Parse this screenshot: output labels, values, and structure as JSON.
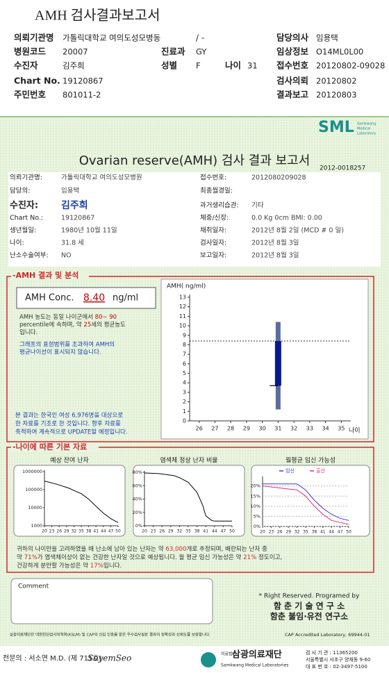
{
  "header": {
    "title": "AMH 검사결과보고서",
    "ward": "/ -",
    "fields": [
      {
        "label": "의뢰기관명",
        "value": "가톨릭대학교 여의도성모병동"
      },
      {
        "label": "담당의사",
        "value": "임용택"
      },
      {
        "label": "병원코드",
        "value": "20007"
      },
      {
        "label": "진료과",
        "value": "GY"
      },
      {
        "label": "임상정보",
        "value": "O14ML0L00"
      },
      {
        "label": "수진자",
        "value": "김주희"
      },
      {
        "label": "성별",
        "value": "F"
      },
      {
        "label": "나이",
        "value": "31"
      },
      {
        "label": "접수번호",
        "value": "20120802-09028"
      },
      {
        "label": "Chart No.",
        "value": "19120867"
      },
      {
        "label": "검사의뢰",
        "value": "20120802"
      },
      {
        "label": "주민번호",
        "value": "801011-2"
      },
      {
        "label": "결과보고",
        "value": "20120803"
      }
    ]
  },
  "report": {
    "logo": "SML",
    "logo_sub": [
      "Samkwang",
      "Medical",
      "Laboratory"
    ],
    "title": "Ovarian reserve(AMH) 검사 결과 보고서",
    "number": "2012-0018257",
    "patient": [
      {
        "label": "의뢰기관명:",
        "value": "가톨릭대학교 여의도성모병원"
      },
      {
        "label": "접수번호:",
        "value": "2012080209028"
      },
      {
        "label": "담당의:",
        "value": "임용택"
      },
      {
        "label": "최종월경일:"
      },
      {
        "label": "수진자:",
        "value": "김주희"
      },
      {
        "label": "과거생리습관:",
        "value": "기타"
      },
      {
        "label": "Chart No.:",
        "value": "19120867"
      },
      {
        "label": "체중/신장:",
        "value": "0.0 Kg      0cm     BMI:  0.00"
      },
      {
        "label": "생년월일:",
        "value": "1980년 10월 11일"
      },
      {
        "label": "채취일자:",
        "value": "2012년 8월 2일    (MCD #  0 일)"
      },
      {
        "label": "나이:",
        "value": "31.8 세"
      },
      {
        "label": "검사일자:",
        "value": "2012년 8월 3일"
      },
      {
        "label": "난소수술여부:",
        "value": "NO"
      },
      {
        "label": "보고일자:",
        "value": "2012년 8월 3일"
      }
    ]
  },
  "amh": {
    "section_title": "-AMH 결과 및 분석",
    "label": "AMH Conc.",
    "value": "8.40",
    "unit": "ng/ml",
    "analysis": [
      [
        "AMH 농도는 동일 나이군에서 ",
        "80~ 90"
      ],
      [
        "percentile에 속하며, 약 ",
        "25",
        "세의 평균농도"
      ],
      [
        "입니다."
      ]
    ],
    "graph_note": [
      "그래프의 표현범위를 초과하여 AMH의",
      "평균나이선이 표시되지 않습니다."
    ],
    "note": [
      "본 결과는 한국인 여성 6,976명을 대상으로",
      "한 자료를 기초로 한 것입니다. 향후 자료를",
      "축적하여 계속적으로 UPDATE할 예정입니다."
    ],
    "chart": {
      "type": "box",
      "y_label": "AMH( ng/ml)",
      "x_label": "나이",
      "xlim": [
        25.4,
        35.6
      ],
      "xticks": [
        26,
        27,
        28,
        29,
        30,
        31,
        32,
        33,
        34,
        35
      ],
      "ylim": [
        0,
        13
      ],
      "yticks": [
        0,
        1,
        2,
        3,
        4,
        5,
        6,
        7,
        8,
        9,
        10,
        11,
        12,
        13
      ],
      "box": {
        "x": 31,
        "low": 1.2,
        "q1": 3.7,
        "q3": 8.4,
        "high": 10.4,
        "color": "#0a1a8c",
        "whisker_color": "#5b6d9c"
      },
      "reference_line": 8.4
    }
  },
  "age_data": {
    "section_title": "-나이에 따른 기본 자료",
    "charts": [
      {
        "type": "line",
        "title": "예상 잔여 난자",
        "log_scale": true,
        "xlim": [
          20,
          50
        ],
        "xticks": [
          20,
          23,
          26,
          29,
          32,
          35,
          38,
          41,
          44,
          47,
          50
        ],
        "ylim": [
          1000,
          1000000
        ],
        "yticks": [
          1000,
          10000,
          100000,
          1000000
        ],
        "series": [
          {
            "color": "#000000",
            "x": [
              20,
              25,
              30,
              32,
              35,
              38,
              41,
              44,
              47,
              50
            ],
            "values": [
              300000,
              200000,
              120000,
              90000,
              60000,
              30000,
              12000,
              5000,
              2500,
              1500
            ]
          }
        ]
      },
      {
        "type": "line",
        "title": "염색체 정상 난자 비율",
        "xlim": [
          20,
          50
        ],
        "xticks": [
          20,
          23,
          26,
          29,
          32,
          35,
          38,
          41,
          44,
          47,
          50
        ],
        "ylim": [
          0,
          80
        ],
        "yticks": [
          {
            "value": 0,
            "label": "0%"
          },
          {
            "value": 20,
            "label": "20%"
          },
          {
            "value": 40,
            "label": "40%"
          },
          {
            "value": 60,
            "label": "60%"
          },
          {
            "value": 80,
            "label": "80%"
          }
        ],
        "series": [
          {
            "color": "#000000",
            "x": [
              20,
              25,
              30,
              32,
              35,
              38,
              40,
              41,
              43,
              44,
              47,
              50
            ],
            "values": [
              79,
              78,
              75,
              72,
              65,
              50,
              30,
              15,
              8,
              7,
              7,
              7
            ]
          }
        ]
      },
      {
        "type": "line",
        "title": "월평균 임신 가능성",
        "grid": true,
        "xlim": [
          20,
          50
        ],
        "xticks": [
          20,
          23,
          26,
          29,
          32,
          35,
          38,
          41,
          44,
          47,
          50
        ],
        "ylim": [
          0,
          24
        ],
        "yticks": [
          {
            "value": 0,
            "label": "0%"
          },
          {
            "value": 5,
            "label": "5%"
          },
          {
            "value": 10,
            "label": "10%"
          },
          {
            "value": 15,
            "label": "15%"
          },
          {
            "value": 20,
            "label": "20%"
          }
        ],
        "series": [
          {
            "name": "임신",
            "color": "#3a3adc",
            "x": [
              20,
              32,
              35,
              38,
              41,
              44,
              47,
              50
            ],
            "values": [
              21,
              21,
              18,
              13,
              9,
              6,
              4,
              3
            ]
          },
          {
            "name": "출산",
            "color": "#e0306a",
            "x": [
              20,
              32,
              35,
              38,
              41,
              44,
              47,
              50
            ],
            "values": [
              20,
              18,
              15,
              10,
              6,
              3,
              2,
              1
            ]
          }
        ]
      }
    ],
    "summary": [
      [
        "귀하의 나이만을 고려하였을 때 난소에 남아 있는 난자는 약 ",
        "63,000",
        "개로 추정되며, 배란되는 난자 중"
      ],
      [
        "약 ",
        "71%",
        "가 염색체이상이 없는 건강한 난자일 것으로 예상됩니다. 월 평균 임신 가능성은 약 ",
        "21%",
        " 정도이고,"
      ],
      [
        "건강하게 분만할 가능성은 약 ",
        "17%",
        "입니다."
      ]
    ]
  },
  "comment": {
    "label": "Comment"
  },
  "credits": [
    "* Right Reserved. Programed by",
    "함 춘 기 술 연 구 소",
    "함춘 불임·유전 연구소"
  ],
  "footer": {
    "certification": "삼광의료재단은 대한진단검사의학회(KSLM) 및 CAP의 신임 인증을 받은 우수검사실로 결과의 정확성과 신뢰도를 보증합니다.",
    "cap": "CAP  Accredited  Laboratory,  69944-01",
    "doctor": "전문의 : 서소연 M.D. (제 711호)",
    "signature": "SoyemSeo",
    "org_prefix": "의료법인",
    "org": "삼광의료재단",
    "org_en": "Samkwang Medical Laboratories",
    "contacts": [
      "검 사 기 관 : 11365200",
      "서울특별시 서초구 양재동 9-60",
      "대 표 번 호 : 02-3497-5100"
    ]
  }
}
